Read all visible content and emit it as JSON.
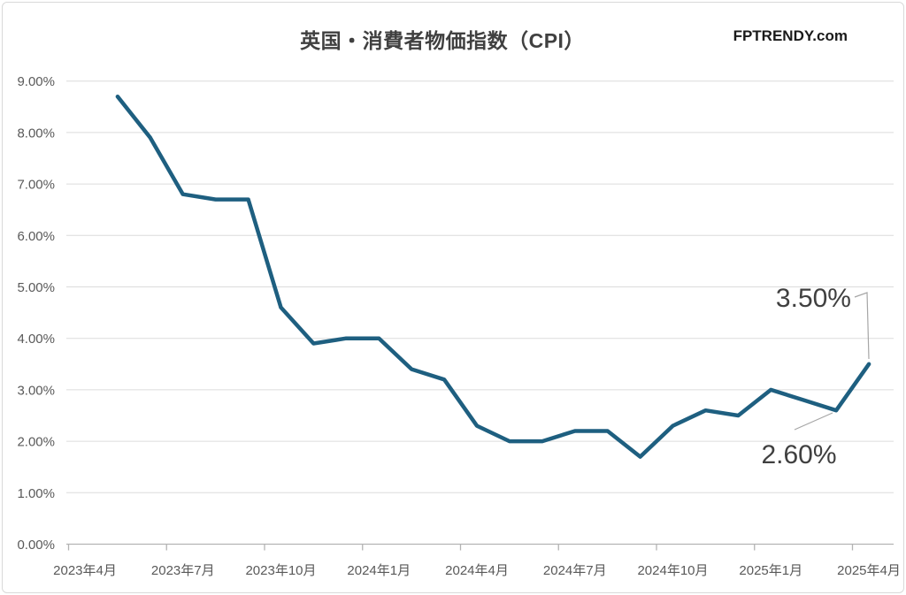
{
  "title": "英国・消費者物価指数（CPI）",
  "watermark": "FPTRENDY.com",
  "colors": {
    "line": "#1e5f80",
    "title_text": "#404040",
    "axis_label_text": "#595959",
    "annotation_text": "#404040",
    "gridline": "#dcdcdc",
    "axis_line": "#b3b3b3",
    "leader_line": "#a6a6a6"
  },
  "chart_data": {
    "type": "line",
    "title": "英国・消費者物価指数（CPI）",
    "unit": "%",
    "x": [
      "2023年5月",
      "2023年6月",
      "2023年7月",
      "2023年8月",
      "2023年9月",
      "2023年10月",
      "2023年11月",
      "2023年12月",
      "2024年1月",
      "2024年2月",
      "2024年3月",
      "2024年4月",
      "2024年5月",
      "2024年6月",
      "2024年7月",
      "2024年8月",
      "2024年9月",
      "2024年10月",
      "2024年11月",
      "2024年12月",
      "2025年1月",
      "2025年2月",
      "2025年3月",
      "2025年4月"
    ],
    "values": [
      8.7,
      7.9,
      6.8,
      6.7,
      6.7,
      4.6,
      3.9,
      4.0,
      4.0,
      3.4,
      3.2,
      2.3,
      2.0,
      2.0,
      2.2,
      2.2,
      1.7,
      2.3,
      2.6,
      2.5,
      3.0,
      2.8,
      2.6,
      3.5
    ],
    "x_tick_labels": [
      "2023年4月",
      "2023年7月",
      "2023年10月",
      "2024年1月",
      "2024年4月",
      "2024年7月",
      "2024年10月",
      "2025年1月",
      "2025年4月"
    ],
    "y_tick_labels": [
      "0.00%",
      "1.00%",
      "2.00%",
      "3.00%",
      "4.00%",
      "5.00%",
      "6.00%",
      "7.00%",
      "8.00%",
      "9.00%"
    ],
    "ylim": [
      0,
      9
    ],
    "ytick_step": 1,
    "grid": "horizontal",
    "legend": "none",
    "annotations": [
      {
        "label": "3.50%",
        "point": "2025年4月",
        "value": 3.5
      },
      {
        "label": "2.60%",
        "point": "2025年3月",
        "value": 2.6
      }
    ]
  }
}
